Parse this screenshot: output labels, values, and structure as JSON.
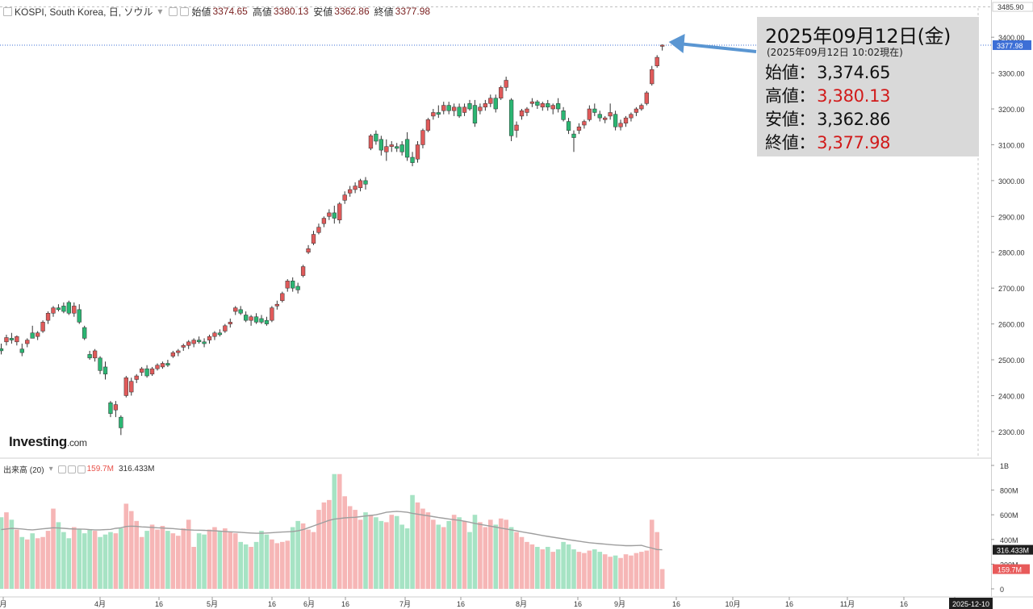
{
  "header": {
    "symbol": "KOSPI, South Korea, 日, ソウル",
    "open_label": "始値",
    "open": "3374.65",
    "high_label": "高値",
    "high": "3380.13",
    "low_label": "安値",
    "low": "3362.86",
    "close_label": "終値",
    "close": "3377.98"
  },
  "volume_header": {
    "label": "出来高 (20)",
    "volume": "159.7M",
    "ma": "316.433M"
  },
  "logo": {
    "brand": "Investing",
    "suffix": ".com"
  },
  "infobox": {
    "date": "2025年09月12日(金)",
    "subtitle": "(2025年09月12日 10:02現在)",
    "open_label": "始値：",
    "open": "3,374.65",
    "high_label": "高値：",
    "high": "3,380.13",
    "low_label": "安値：",
    "low": "3,362.86",
    "close_label": "終値：",
    "close": "3,377.98"
  },
  "colors": {
    "up": "#e05a5a",
    "down": "#2bb673",
    "vol_up": "#f6b6b6",
    "vol_down": "#a6e3c4",
    "ma_line": "#9e9e9e",
    "arrow": "#5a96d2",
    "current_badge": "#3d6fd6",
    "volume_badge": "#e85a5a"
  },
  "chart_data": {
    "type": "candlestick",
    "price_axis": {
      "ticks": [
        "3400.00",
        "3300.00",
        "3200.00",
        "3100.00",
        "3000.00",
        "2900.00",
        "2800.00",
        "2700.00",
        "2600.00",
        "2500.00",
        "2400.00",
        "2300.00"
      ],
      "top_label": "3485.90",
      "current_label": "3377.98",
      "range": [
        2230,
        3485.9
      ]
    },
    "volume_axis": {
      "ticks": [
        "1B",
        "800M",
        "600M",
        "400M",
        "200M",
        "0"
      ],
      "ma_label": "316.433M",
      "current_label": "159.7M",
      "range": [
        0,
        1000
      ]
    },
    "time_axis": {
      "labels": [
        "月",
        "4月",
        "16",
        "5月",
        "16",
        "6月",
        "16",
        "7月",
        "16",
        "8月",
        "16",
        "9月",
        "16",
        "10月",
        "16",
        "11月",
        "16",
        "12"
      ],
      "end_label": "2025-12-10"
    },
    "candles": [
      {
        "o": 2531,
        "h": 2545,
        "l": 2515,
        "c": 2525
      },
      {
        "o": 2550,
        "h": 2570,
        "l": 2540,
        "c": 2562
      },
      {
        "o": 2560,
        "h": 2575,
        "l": 2545,
        "c": 2555
      },
      {
        "o": 2550,
        "h": 2568,
        "l": 2540,
        "c": 2565
      },
      {
        "o": 2530,
        "h": 2545,
        "l": 2510,
        "c": 2520
      },
      {
        "o": 2545,
        "h": 2560,
        "l": 2535,
        "c": 2555
      },
      {
        "o": 2575,
        "h": 2595,
        "l": 2560,
        "c": 2560
      },
      {
        "o": 2565,
        "h": 2580,
        "l": 2555,
        "c": 2575
      },
      {
        "o": 2580,
        "h": 2610,
        "l": 2575,
        "c": 2605
      },
      {
        "o": 2610,
        "h": 2635,
        "l": 2600,
        "c": 2630
      },
      {
        "o": 2630,
        "h": 2650,
        "l": 2620,
        "c": 2645
      },
      {
        "o": 2645,
        "h": 2655,
        "l": 2635,
        "c": 2640
      },
      {
        "o": 2650,
        "h": 2660,
        "l": 2630,
        "c": 2635
      },
      {
        "o": 2660,
        "h": 2665,
        "l": 2625,
        "c": 2630
      },
      {
        "o": 2630,
        "h": 2660,
        "l": 2620,
        "c": 2650
      },
      {
        "o": 2640,
        "h": 2655,
        "l": 2600,
        "c": 2605
      },
      {
        "o": 2590,
        "h": 2595,
        "l": 2555,
        "c": 2560
      },
      {
        "o": 2515,
        "h": 2525,
        "l": 2500,
        "c": 2505
      },
      {
        "o": 2505,
        "h": 2530,
        "l": 2495,
        "c": 2525
      },
      {
        "o": 2505,
        "h": 2510,
        "l": 2460,
        "c": 2470
      },
      {
        "o": 2480,
        "h": 2495,
        "l": 2445,
        "c": 2460
      },
      {
        "o": 2380,
        "h": 2385,
        "l": 2340,
        "c": 2350
      },
      {
        "o": 2360,
        "h": 2385,
        "l": 2340,
        "c": 2375
      },
      {
        "o": 2340,
        "h": 2345,
        "l": 2290,
        "c": 2310
      },
      {
        "o": 2400,
        "h": 2455,
        "l": 2395,
        "c": 2450
      },
      {
        "o": 2410,
        "h": 2450,
        "l": 2400,
        "c": 2440
      },
      {
        "o": 2445,
        "h": 2460,
        "l": 2435,
        "c": 2455
      },
      {
        "o": 2465,
        "h": 2480,
        "l": 2455,
        "c": 2475
      },
      {
        "o": 2475,
        "h": 2485,
        "l": 2450,
        "c": 2455
      },
      {
        "o": 2460,
        "h": 2480,
        "l": 2455,
        "c": 2475
      },
      {
        "o": 2475,
        "h": 2490,
        "l": 2470,
        "c": 2485
      },
      {
        "o": 2480,
        "h": 2495,
        "l": 2475,
        "c": 2490
      },
      {
        "o": 2490,
        "h": 2500,
        "l": 2480,
        "c": 2485
      },
      {
        "o": 2510,
        "h": 2525,
        "l": 2505,
        "c": 2520
      },
      {
        "o": 2520,
        "h": 2530,
        "l": 2510,
        "c": 2525
      },
      {
        "o": 2535,
        "h": 2545,
        "l": 2525,
        "c": 2540
      },
      {
        "o": 2540,
        "h": 2555,
        "l": 2530,
        "c": 2550
      },
      {
        "o": 2545,
        "h": 2560,
        "l": 2535,
        "c": 2555
      },
      {
        "o": 2555,
        "h": 2565,
        "l": 2545,
        "c": 2550
      },
      {
        "o": 2550,
        "h": 2560,
        "l": 2535,
        "c": 2545
      },
      {
        "o": 2555,
        "h": 2570,
        "l": 2545,
        "c": 2565
      },
      {
        "o": 2565,
        "h": 2580,
        "l": 2555,
        "c": 2575
      },
      {
        "o": 2575,
        "h": 2585,
        "l": 2565,
        "c": 2570
      },
      {
        "o": 2580,
        "h": 2600,
        "l": 2575,
        "c": 2595
      },
      {
        "o": 2600,
        "h": 2615,
        "l": 2590,
        "c": 2605
      },
      {
        "o": 2635,
        "h": 2650,
        "l": 2625,
        "c": 2645
      },
      {
        "o": 2640,
        "h": 2650,
        "l": 2625,
        "c": 2630
      },
      {
        "o": 2625,
        "h": 2635,
        "l": 2605,
        "c": 2610
      },
      {
        "o": 2610,
        "h": 2625,
        "l": 2595,
        "c": 2620
      },
      {
        "o": 2620,
        "h": 2630,
        "l": 2600,
        "c": 2605
      },
      {
        "o": 2615,
        "h": 2625,
        "l": 2600,
        "c": 2605
      },
      {
        "o": 2610,
        "h": 2620,
        "l": 2595,
        "c": 2600
      },
      {
        "o": 2610,
        "h": 2650,
        "l": 2605,
        "c": 2645
      },
      {
        "o": 2650,
        "h": 2665,
        "l": 2640,
        "c": 2655
      },
      {
        "o": 2665,
        "h": 2690,
        "l": 2660,
        "c": 2685
      },
      {
        "o": 2700,
        "h": 2725,
        "l": 2690,
        "c": 2720
      },
      {
        "o": 2720,
        "h": 2730,
        "l": 2690,
        "c": 2700
      },
      {
        "o": 2705,
        "h": 2715,
        "l": 2685,
        "c": 2695
      },
      {
        "o": 2735,
        "h": 2765,
        "l": 2730,
        "c": 2760
      },
      {
        "o": 2800,
        "h": 2820,
        "l": 2795,
        "c": 2810
      },
      {
        "o": 2825,
        "h": 2860,
        "l": 2820,
        "c": 2850
      },
      {
        "o": 2855,
        "h": 2880,
        "l": 2850,
        "c": 2870
      },
      {
        "o": 2880,
        "h": 2900,
        "l": 2870,
        "c": 2895
      },
      {
        "o": 2900,
        "h": 2920,
        "l": 2890,
        "c": 2910
      },
      {
        "o": 2910,
        "h": 2930,
        "l": 2880,
        "c": 2895
      },
      {
        "o": 2890,
        "h": 2940,
        "l": 2880,
        "c": 2935
      },
      {
        "o": 2945,
        "h": 2970,
        "l": 2935,
        "c": 2960
      },
      {
        "o": 2965,
        "h": 2985,
        "l": 2955,
        "c": 2975
      },
      {
        "o": 2975,
        "h": 2995,
        "l": 2965,
        "c": 2985
      },
      {
        "o": 2980,
        "h": 3005,
        "l": 2970,
        "c": 3000
      },
      {
        "o": 3000,
        "h": 3010,
        "l": 2975,
        "c": 2990
      },
      {
        "o": 3090,
        "h": 3130,
        "l": 3085,
        "c": 3125
      },
      {
        "o": 3130,
        "h": 3140,
        "l": 3100,
        "c": 3110
      },
      {
        "o": 3115,
        "h": 3125,
        "l": 3070,
        "c": 3085
      },
      {
        "o": 3080,
        "h": 3115,
        "l": 3055,
        "c": 3095
      },
      {
        "o": 3095,
        "h": 3110,
        "l": 3080,
        "c": 3100
      },
      {
        "o": 3095,
        "h": 3105,
        "l": 3080,
        "c": 3090
      },
      {
        "o": 3100,
        "h": 3110,
        "l": 3070,
        "c": 3080
      },
      {
        "o": 3115,
        "h": 3135,
        "l": 3055,
        "c": 3065
      },
      {
        "o": 3065,
        "h": 3080,
        "l": 3040,
        "c": 3050
      },
      {
        "o": 3060,
        "h": 3110,
        "l": 3050,
        "c": 3100
      },
      {
        "o": 3100,
        "h": 3145,
        "l": 3090,
        "c": 3140
      },
      {
        "o": 3140,
        "h": 3175,
        "l": 3135,
        "c": 3170
      },
      {
        "o": 3180,
        "h": 3200,
        "l": 3170,
        "c": 3190
      },
      {
        "o": 3190,
        "h": 3210,
        "l": 3175,
        "c": 3185
      },
      {
        "o": 3195,
        "h": 3220,
        "l": 3185,
        "c": 3210
      },
      {
        "o": 3210,
        "h": 3220,
        "l": 3185,
        "c": 3195
      },
      {
        "o": 3195,
        "h": 3215,
        "l": 3180,
        "c": 3205
      },
      {
        "o": 3205,
        "h": 3215,
        "l": 3175,
        "c": 3180
      },
      {
        "o": 3190,
        "h": 3215,
        "l": 3180,
        "c": 3205
      },
      {
        "o": 3215,
        "h": 3225,
        "l": 3195,
        "c": 3200
      },
      {
        "o": 3210,
        "h": 3225,
        "l": 3150,
        "c": 3160
      },
      {
        "o": 3195,
        "h": 3215,
        "l": 3185,
        "c": 3205
      },
      {
        "o": 3205,
        "h": 3225,
        "l": 3195,
        "c": 3215
      },
      {
        "o": 3215,
        "h": 3240,
        "l": 3205,
        "c": 3230
      },
      {
        "o": 3230,
        "h": 3240,
        "l": 3190,
        "c": 3200
      },
      {
        "o": 3230,
        "h": 3265,
        "l": 3225,
        "c": 3260
      },
      {
        "o": 3260,
        "h": 3290,
        "l": 3250,
        "c": 3280
      },
      {
        "o": 3225,
        "h": 3230,
        "l": 3110,
        "c": 3125
      },
      {
        "o": 3140,
        "h": 3165,
        "l": 3120,
        "c": 3155
      },
      {
        "o": 3180,
        "h": 3200,
        "l": 3170,
        "c": 3195
      },
      {
        "o": 3190,
        "h": 3205,
        "l": 3180,
        "c": 3200
      },
      {
        "o": 3215,
        "h": 3230,
        "l": 3205,
        "c": 3220
      },
      {
        "o": 3220,
        "h": 3225,
        "l": 3200,
        "c": 3210
      },
      {
        "o": 3205,
        "h": 3220,
        "l": 3195,
        "c": 3215
      },
      {
        "o": 3215,
        "h": 3225,
        "l": 3195,
        "c": 3205
      },
      {
        "o": 3200,
        "h": 3215,
        "l": 3185,
        "c": 3210
      },
      {
        "o": 3215,
        "h": 3230,
        "l": 3190,
        "c": 3200
      },
      {
        "o": 3195,
        "h": 3205,
        "l": 3165,
        "c": 3170
      },
      {
        "o": 3165,
        "h": 3175,
        "l": 3130,
        "c": 3140
      },
      {
        "o": 3130,
        "h": 3140,
        "l": 3080,
        "c": 3120
      },
      {
        "o": 3140,
        "h": 3160,
        "l": 3130,
        "c": 3150
      },
      {
        "o": 3155,
        "h": 3170,
        "l": 3145,
        "c": 3165
      },
      {
        "o": 3170,
        "h": 3210,
        "l": 3165,
        "c": 3200
      },
      {
        "o": 3200,
        "h": 3215,
        "l": 3180,
        "c": 3190
      },
      {
        "o": 3185,
        "h": 3195,
        "l": 3165,
        "c": 3175
      },
      {
        "o": 3170,
        "h": 3180,
        "l": 3160,
        "c": 3175
      },
      {
        "o": 3180,
        "h": 3215,
        "l": 3170,
        "c": 3190
      },
      {
        "o": 3185,
        "h": 3195,
        "l": 3140,
        "c": 3150
      },
      {
        "o": 3150,
        "h": 3170,
        "l": 3140,
        "c": 3160
      },
      {
        "o": 3160,
        "h": 3180,
        "l": 3150,
        "c": 3175
      },
      {
        "o": 3175,
        "h": 3190,
        "l": 3165,
        "c": 3185
      },
      {
        "o": 3190,
        "h": 3205,
        "l": 3180,
        "c": 3200
      },
      {
        "o": 3200,
        "h": 3215,
        "l": 3195,
        "c": 3210
      },
      {
        "o": 3215,
        "h": 3250,
        "l": 3210,
        "c": 3245
      },
      {
        "o": 3270,
        "h": 3320,
        "l": 3265,
        "c": 3310
      },
      {
        "o": 3320,
        "h": 3350,
        "l": 3315,
        "c": 3344
      },
      {
        "o": 3374.65,
        "h": 3380.13,
        "l": 3362.86,
        "c": 3377.98
      }
    ],
    "volume": [
      580,
      620,
      560,
      480,
      420,
      400,
      450,
      410,
      420,
      470,
      650,
      540,
      460,
      410,
      500,
      480,
      450,
      480,
      470,
      420,
      440,
      460,
      450,
      490,
      690,
      630,
      550,
      420,
      470,
      520,
      480,
      510,
      470,
      450,
      430,
      490,
      560,
      340,
      450,
      440,
      480,
      500,
      470,
      490,
      460,
      450,
      380,
      360,
      340,
      380,
      470,
      440,
      400,
      370,
      380,
      390,
      500,
      550,
      530,
      480,
      460,
      640,
      700,
      720,
      930,
      930,
      750,
      670,
      640,
      560,
      620,
      600,
      580,
      550,
      540,
      600,
      590,
      520,
      490,
      760,
      700,
      650,
      620,
      560,
      520,
      500,
      550,
      600,
      580,
      550,
      460,
      600,
      540,
      500,
      560,
      520,
      570,
      560,
      500,
      460,
      420,
      380,
      360,
      340,
      320,
      340,
      300,
      320,
      380,
      360,
      320,
      300,
      290,
      310,
      320,
      300,
      280,
      260,
      270,
      250,
      280,
      270,
      290,
      300,
      310,
      560,
      460,
      160
    ],
    "volume_ma": [
      480,
      485,
      490,
      488,
      485,
      480,
      478,
      482,
      486,
      490,
      495,
      493,
      490,
      487,
      485,
      484,
      483,
      480,
      478,
      478,
      480,
      482,
      490,
      495,
      505,
      508,
      506,
      502,
      500,
      498,
      495,
      493,
      490,
      488,
      484,
      480,
      478,
      476,
      475,
      474,
      472,
      470,
      468,
      465,
      462,
      460,
      458,
      455,
      452,
      450,
      450,
      452,
      455,
      458,
      460,
      462,
      465,
      470,
      480,
      495,
      510,
      525,
      540,
      555,
      565,
      570,
      575,
      578,
      580,
      585,
      590,
      595,
      600,
      610,
      620,
      625,
      628,
      625,
      620,
      612,
      605,
      598,
      592,
      585,
      578,
      572,
      566,
      560,
      555,
      548,
      540,
      530,
      522,
      515,
      508,
      500,
      492,
      485,
      478,
      470,
      462,
      455,
      448,
      440,
      432,
      425,
      418,
      412,
      405,
      398,
      392,
      386,
      380,
      374,
      370,
      366,
      362,
      358,
      355,
      352,
      350,
      350,
      351,
      352,
      340,
      330,
      318,
      316.433
    ]
  }
}
